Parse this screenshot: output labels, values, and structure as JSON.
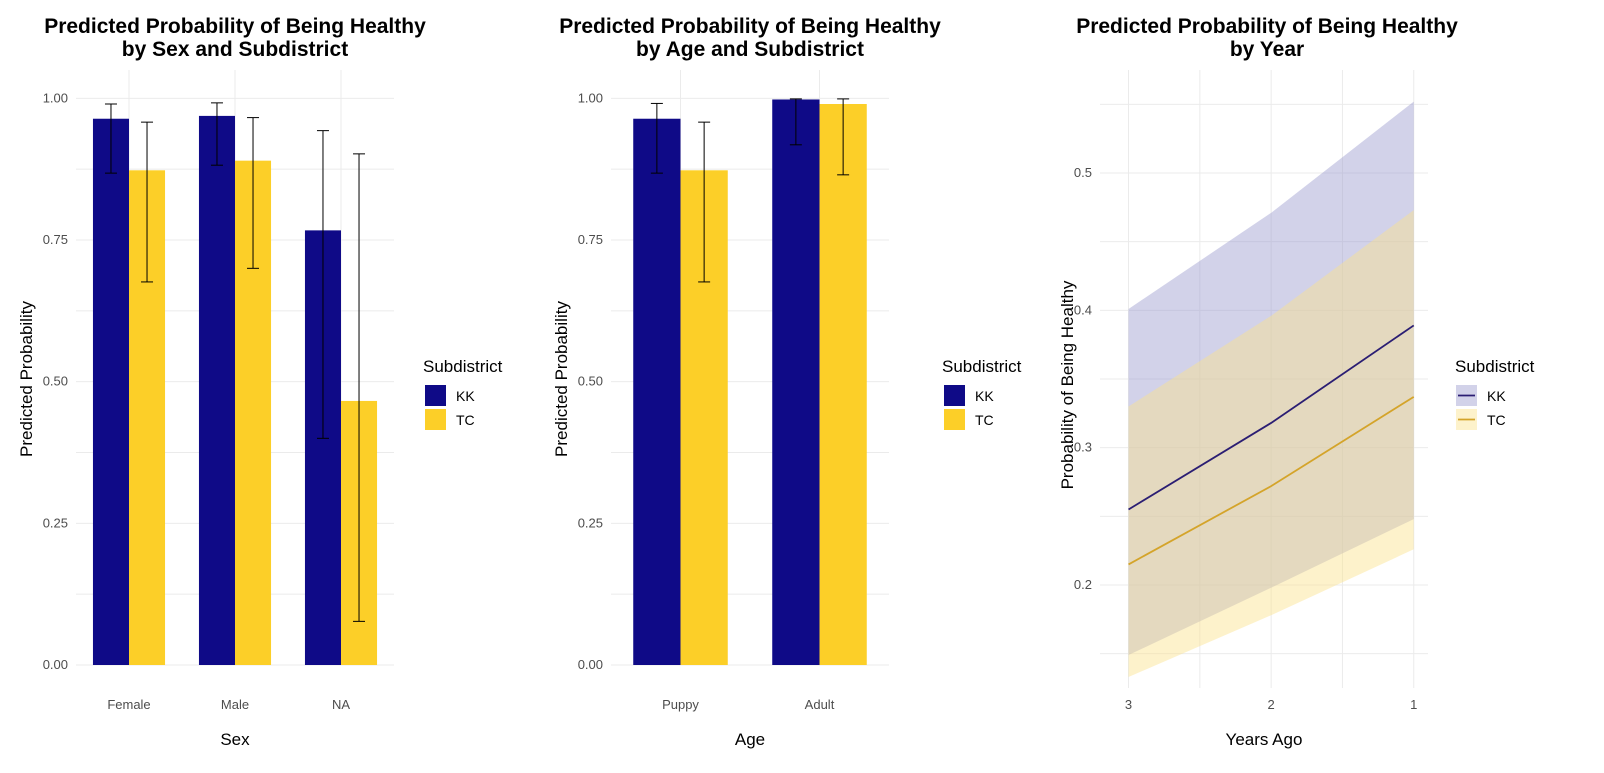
{
  "chart_data": [
    {
      "type": "bar",
      "title": "Predicted Probability of Being Healthy\nby Sex and Subdistrict",
      "xlabel": "Sex",
      "ylabel": "Predicted Probability",
      "categories": [
        "Female",
        "Male",
        "NA"
      ],
      "ylim": [
        0,
        1.05
      ],
      "yticks": [
        "0.00",
        "0.25",
        "0.50",
        "0.75",
        "1.00"
      ],
      "series": [
        {
          "name": "KK",
          "color": "#0f0a87",
          "values": [
            0.964,
            0.969,
            0.767
          ],
          "lower": [
            0.868,
            0.882,
            0.4
          ],
          "upper": [
            0.99,
            0.992,
            0.943
          ]
        },
        {
          "name": "TC",
          "color": "#fccf28",
          "values": [
            0.873,
            0.89,
            0.466
          ],
          "lower": [
            0.676,
            0.7,
            0.077
          ],
          "upper": [
            0.958,
            0.966,
            0.902
          ]
        }
      ],
      "legend": {
        "title": "Subdistrict",
        "position": "right"
      },
      "grid": true
    },
    {
      "type": "bar",
      "title": "Predicted Probability of Being Healthy\nby Age and Subdistrict",
      "xlabel": "Age",
      "ylabel": "Predicted Probability",
      "categories": [
        "Puppy",
        "Adult"
      ],
      "ylim": [
        0,
        1.05
      ],
      "yticks": [
        "0.00",
        "0.25",
        "0.50",
        "0.75",
        "1.00"
      ],
      "series": [
        {
          "name": "KK",
          "color": "#0f0a87",
          "values": [
            0.964,
            0.998
          ],
          "lower": [
            0.868,
            0.918
          ],
          "upper": [
            0.991,
            0.999
          ]
        },
        {
          "name": "TC",
          "color": "#fccf28",
          "values": [
            0.873,
            0.99
          ],
          "lower": [
            0.676,
            0.865
          ],
          "upper": [
            0.958,
            0.999
          ]
        }
      ],
      "legend": {
        "title": "Subdistrict",
        "position": "right"
      },
      "grid": true
    },
    {
      "type": "line",
      "title": "Predicted Probability of Being Healthy\nby Year",
      "xlabel": "Years Ago",
      "ylabel": "Probability of Being Healthy",
      "x": [
        3,
        2,
        1
      ],
      "xlim": [
        3.2,
        0.9
      ],
      "ylim": [
        0.125,
        0.575
      ],
      "yticks": [
        0.2,
        0.3,
        0.4,
        0.5
      ],
      "yticklabels": [
        "0.2",
        "0.3",
        "0.4",
        "0.5"
      ],
      "series": [
        {
          "name": "KK",
          "line_color": "#2b1e73",
          "band_color": "#9b9bcf",
          "values": [
            0.255,
            0.318,
            0.389
          ],
          "lower": [
            0.149,
            0.198,
            0.248
          ],
          "upper": [
            0.401,
            0.471,
            0.552
          ]
        },
        {
          "name": "TC",
          "line_color": "#d4a42a",
          "band_color": "#fbe38b",
          "values": [
            0.215,
            0.272,
            0.337
          ],
          "lower": [
            0.133,
            0.178,
            0.226
          ],
          "upper": [
            0.33,
            0.396,
            0.473
          ]
        }
      ],
      "legend": {
        "title": "Subdistrict",
        "position": "right"
      },
      "grid": true
    }
  ]
}
